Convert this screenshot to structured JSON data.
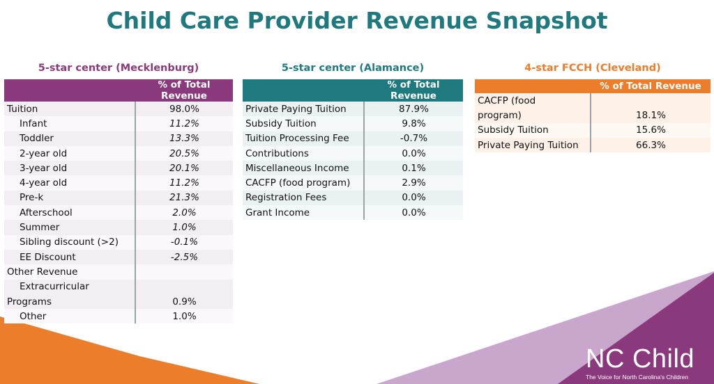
{
  "title": "Child Care Provider Revenue Snapshot",
  "colors": {
    "teal": "#1f7a80",
    "purple": "#8a3a7c",
    "orange": "#ec7d2a"
  },
  "header_col": "% of Total Revenue",
  "mecklenburg": {
    "caption": "5-star center (Mecklenburg)",
    "rows": [
      {
        "label": "Tuition",
        "value": "98.0%"
      },
      {
        "label": "Infant",
        "value": "11.2%"
      },
      {
        "label": "Toddler",
        "value": "13.3%"
      },
      {
        "label": "2-year old",
        "value": "20.5%"
      },
      {
        "label": "3-year old",
        "value": "20.1%"
      },
      {
        "label": "4-year old",
        "value": "11.2%"
      },
      {
        "label": "Pre-k",
        "value": "21.3%"
      },
      {
        "label": "Afterschool",
        "value": "2.0%"
      },
      {
        "label": "Summer",
        "value": "1.0%"
      },
      {
        "label": "Sibling discount (>2)",
        "value": "-0.1%"
      },
      {
        "label": "EE Discount",
        "value": "-2.5%"
      },
      {
        "label": "Other Revenue",
        "value": ""
      },
      {
        "label_1": "Extracurricular",
        "label_2": "Programs",
        "value": "0.9%"
      },
      {
        "label": "Other",
        "value": "1.0%"
      }
    ]
  },
  "alamance": {
    "caption": "5-star center (Alamance)",
    "rows": [
      {
        "label": "Private Paying Tuition",
        "value": "87.9%"
      },
      {
        "label": "Subsidy Tuition",
        "value": "9.8%"
      },
      {
        "label": "Tuition Processing Fee",
        "value": "-0.7%"
      },
      {
        "label": "Contributions",
        "value": "0.0%"
      },
      {
        "label": "Miscellaneous Income",
        "value": "0.1%"
      },
      {
        "label": "CACFP (food program)",
        "value": "2.9%"
      },
      {
        "label": "Registration Fees",
        "value": "0.0%"
      },
      {
        "label": "Grant Income",
        "value": "0.0%"
      }
    ]
  },
  "cleveland": {
    "caption": "4-star FCCH (Cleveland)",
    "rows": [
      {
        "label_1": "CACFP (food",
        "label_2": "program)",
        "value": "18.1%"
      },
      {
        "label": "Subsidy Tuition",
        "value": "15.6%"
      },
      {
        "label": "Private Paying Tuition",
        "value": "66.3%"
      }
    ]
  },
  "logo": {
    "name": "NC Child",
    "tagline": "The Voice for North Carolina's Children"
  }
}
